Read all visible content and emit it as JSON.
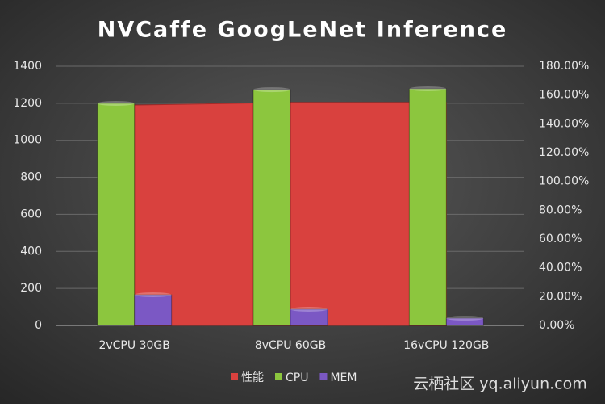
{
  "chart_data": {
    "type": "combo",
    "title": "NVCaffe GoogLeNet  Inference",
    "categories": [
      "2vCPU 30GB",
      "8vCPU 60GB",
      "16vCPU 120GB"
    ],
    "series": [
      {
        "name": "性能",
        "type": "area",
        "color": "#d9413e",
        "values": [
          1190,
          1205,
          1205
        ]
      },
      {
        "name": "CPU",
        "type": "bar",
        "axis": "y2",
        "color": "#8cc63e",
        "values": [
          154.2,
          163.7,
          164.3
        ]
      },
      {
        "name": "MEM",
        "type": "bar",
        "axis": "y2",
        "color": "#7b58c4",
        "values": [
          21.3,
          11.2,
          5
        ]
      }
    ],
    "ylim": [
      0,
      1400
    ],
    "yticks": [
      0,
      200,
      400,
      600,
      800,
      1000,
      1200,
      1400
    ],
    "y2lim": [
      0,
      180
    ],
    "y2ticks": [
      {
        "value": 0,
        "label": "0.00%"
      },
      {
        "value": 20,
        "label": "20.00%"
      },
      {
        "value": 40,
        "label": "40.00%"
      },
      {
        "value": 60,
        "label": "60.00%"
      },
      {
        "value": 80,
        "label": "80.00%"
      },
      {
        "value": 100,
        "label": "100.00%"
      },
      {
        "value": 120,
        "label": "120.00%"
      },
      {
        "value": 140,
        "label": "140.00%"
      },
      {
        "value": 160,
        "label": "160.00%"
      },
      {
        "value": 180,
        "label": "180.00%"
      }
    ],
    "grid": true,
    "legend": "bottom",
    "watermark": "云栖社区 yq.aliyun.com"
  }
}
